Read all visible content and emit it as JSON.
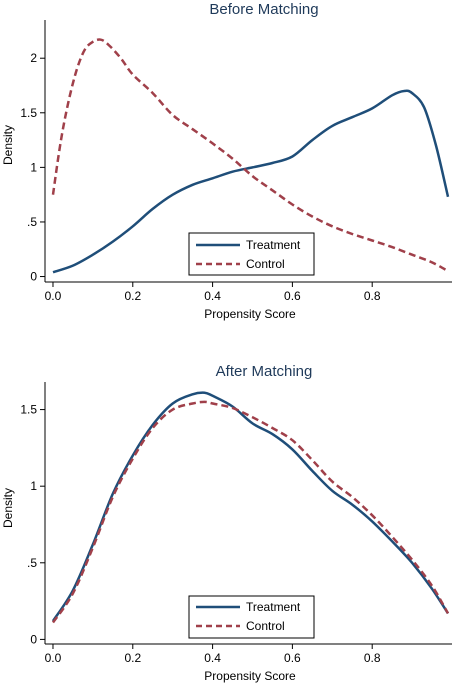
{
  "colors": {
    "treatment": "#1f4e79",
    "control": "#a0404a",
    "title": "#1f3a5a"
  },
  "chart_data": [
    {
      "type": "line",
      "title": "Before Matching",
      "xlabel": "Propensity Score",
      "ylabel": "Density",
      "xlim": [
        -0.02,
        1.0
      ],
      "ylim": [
        -0.05,
        2.35
      ],
      "xticks": [
        0,
        0.2,
        0.4,
        0.6,
        0.8
      ],
      "xtick_labels": [
        "0.0",
        "0.2",
        "0.4",
        "0.6",
        "0.8"
      ],
      "yticks": [
        0,
        0.5,
        1,
        1.5,
        2
      ],
      "ytick_labels": [
        "0",
        ".5",
        "1",
        "1.5",
        "2"
      ],
      "grid": false,
      "legend_position": "bottom-center",
      "series": [
        {
          "name": "Treatment",
          "style": "solid",
          "x": [
            0.0,
            0.05,
            0.1,
            0.15,
            0.2,
            0.25,
            0.3,
            0.35,
            0.4,
            0.45,
            0.5,
            0.55,
            0.6,
            0.65,
            0.7,
            0.75,
            0.8,
            0.85,
            0.88,
            0.9,
            0.93,
            0.96,
            0.99
          ],
          "y": [
            0.04,
            0.1,
            0.2,
            0.32,
            0.46,
            0.62,
            0.75,
            0.84,
            0.9,
            0.96,
            1.0,
            1.04,
            1.1,
            1.25,
            1.38,
            1.46,
            1.54,
            1.66,
            1.7,
            1.68,
            1.55,
            1.2,
            0.73
          ]
        },
        {
          "name": "Control",
          "style": "dashed",
          "x": [
            0.0,
            0.02,
            0.04,
            0.06,
            0.08,
            0.1,
            0.12,
            0.14,
            0.17,
            0.2,
            0.25,
            0.3,
            0.35,
            0.4,
            0.45,
            0.5,
            0.55,
            0.6,
            0.65,
            0.7,
            0.75,
            0.8,
            0.85,
            0.9,
            0.95,
            0.99
          ],
          "y": [
            0.75,
            1.25,
            1.62,
            1.9,
            2.08,
            2.15,
            2.17,
            2.12,
            2.0,
            1.85,
            1.68,
            1.48,
            1.35,
            1.22,
            1.08,
            0.92,
            0.79,
            0.66,
            0.55,
            0.46,
            0.39,
            0.33,
            0.27,
            0.2,
            0.13,
            0.05
          ]
        }
      ]
    },
    {
      "type": "line",
      "title": "After Matching",
      "xlabel": "Propensity Score",
      "ylabel": "Density",
      "xlim": [
        -0.02,
        1.0
      ],
      "ylim": [
        -0.03,
        1.68
      ],
      "xticks": [
        0,
        0.2,
        0.4,
        0.6,
        0.8
      ],
      "xtick_labels": [
        "0.0",
        "0.2",
        "0.4",
        "0.6",
        "0.8"
      ],
      "yticks": [
        0,
        0.5,
        1,
        1.5
      ],
      "ytick_labels": [
        "0",
        ".5",
        "1",
        "1.5"
      ],
      "grid": false,
      "legend_position": "bottom-center",
      "series": [
        {
          "name": "Treatment",
          "style": "solid",
          "x": [
            0.0,
            0.05,
            0.1,
            0.15,
            0.2,
            0.25,
            0.3,
            0.35,
            0.38,
            0.4,
            0.45,
            0.5,
            0.55,
            0.6,
            0.65,
            0.7,
            0.75,
            0.8,
            0.85,
            0.9,
            0.95,
            0.99
          ],
          "y": [
            0.12,
            0.32,
            0.62,
            0.95,
            1.2,
            1.4,
            1.54,
            1.6,
            1.61,
            1.59,
            1.52,
            1.41,
            1.34,
            1.24,
            1.1,
            0.97,
            0.88,
            0.77,
            0.64,
            0.5,
            0.33,
            0.17
          ]
        },
        {
          "name": "Control",
          "style": "dashed",
          "x": [
            0.0,
            0.05,
            0.1,
            0.15,
            0.2,
            0.25,
            0.3,
            0.35,
            0.38,
            0.4,
            0.45,
            0.5,
            0.55,
            0.6,
            0.65,
            0.7,
            0.75,
            0.8,
            0.85,
            0.9,
            0.95,
            0.99
          ],
          "y": [
            0.11,
            0.3,
            0.6,
            0.93,
            1.18,
            1.38,
            1.5,
            1.54,
            1.55,
            1.54,
            1.51,
            1.45,
            1.38,
            1.3,
            1.17,
            1.03,
            0.93,
            0.81,
            0.67,
            0.52,
            0.35,
            0.17
          ]
        }
      ]
    }
  ]
}
